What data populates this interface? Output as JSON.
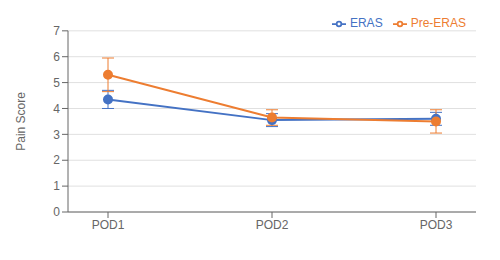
{
  "chart_data": {
    "type": "line",
    "categories": [
      "POD1",
      "POD2",
      "POD3"
    ],
    "series": [
      {
        "name": "ERAS",
        "color": "#4472C4",
        "values": [
          4.35,
          3.55,
          3.6
        ],
        "errors": [
          0.35,
          0.25,
          0.25
        ],
        "marker": "circle"
      },
      {
        "name": "Pre-ERAS",
        "color": "#ED7D31",
        "values": [
          5.3,
          3.65,
          3.5
        ],
        "errors": [
          0.65,
          0.3,
          0.45
        ],
        "marker": "circle"
      }
    ],
    "ylabel": "Pain Score",
    "ylim": [
      0,
      7
    ],
    "yticks": [
      0,
      1,
      2,
      3,
      4,
      5,
      6,
      7
    ],
    "grid": true,
    "legend": "upper right"
  }
}
